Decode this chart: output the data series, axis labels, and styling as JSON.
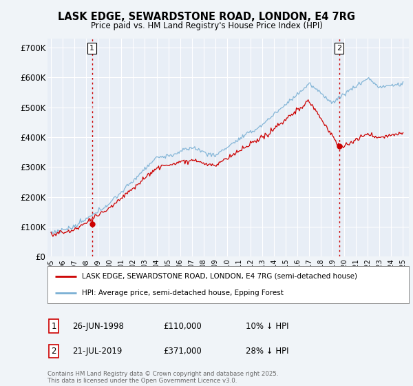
{
  "title": "LASK EDGE, SEWARDSTONE ROAD, LONDON, E4 7RG",
  "subtitle": "Price paid vs. HM Land Registry's House Price Index (HPI)",
  "background_color": "#f0f4f8",
  "plot_bg_color": "#e8eef6",
  "legend_entry1": "LASK EDGE, SEWARDSTONE ROAD, LONDON, E4 7RG (semi-detached house)",
  "legend_entry2": "HPI: Average price, semi-detached house, Epping Forest",
  "footnote": "Contains HM Land Registry data © Crown copyright and database right 2025.\nThis data is licensed under the Open Government Licence v3.0.",
  "transaction1_date": "26-JUN-1998",
  "transaction1_price": 110000,
  "transaction1_label": "£110,000",
  "transaction1_hpi": "10% ↓ HPI",
  "transaction2_date": "21-JUL-2019",
  "transaction2_price": 371000,
  "transaction2_label": "£371,000",
  "transaction2_hpi": "28% ↓ HPI",
  "red_line_color": "#cc0000",
  "blue_line_color": "#7ab0d4",
  "dashed_color": "#cc0000",
  "ylim": [
    0,
    730000
  ],
  "yticks": [
    0,
    100000,
    200000,
    300000,
    400000,
    500000,
    600000,
    700000
  ],
  "ytick_labels": [
    "£0",
    "£100K",
    "£200K",
    "£300K",
    "£400K",
    "£500K",
    "£600K",
    "£700K"
  ],
  "year_start": 1995,
  "year_end": 2025,
  "t1_year": 1998.5,
  "t2_year": 2019.55
}
